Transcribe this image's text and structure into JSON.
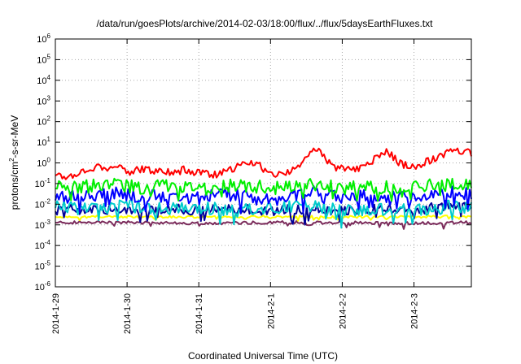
{
  "chart_data": {
    "type": "line",
    "title": "/data/run/goesPlots/archive/2014-02-03/18:00/flux/../flux/5daysEarthFluxes.txt",
    "xlabel": "Coordinated Universal Time (UTC)",
    "ylabel_main": "protons/cm",
    "ylabel_sup": "2",
    "ylabel_tail": "-s-sr-MeV",
    "x_tick_labels": [
      "2014-1-29",
      "2014-1-30",
      "2014-1-31",
      "2014-2-1",
      "2014-2-2",
      "2014-2-3"
    ],
    "x_range_days": [
      0,
      5.8
    ],
    "y_scale": "log",
    "y_tick_exponents": [
      -6,
      -5,
      -4,
      -3,
      -2,
      -1,
      0,
      1,
      2,
      3,
      4,
      5,
      6
    ],
    "y_tick_base": "10",
    "ylim": [
      1e-06,
      1000000.0
    ],
    "grid": true,
    "legend": "none",
    "series": [
      {
        "color": "#ff0000",
        "points": [
          [
            0,
            0.3
          ],
          [
            0.15,
            0.2
          ],
          [
            0.3,
            0.3
          ],
          [
            0.45,
            0.5
          ],
          [
            0.6,
            0.7
          ],
          [
            0.75,
            0.55
          ],
          [
            0.9,
            0.6
          ],
          [
            1.05,
            0.35
          ],
          [
            1.2,
            0.5
          ],
          [
            1.35,
            0.4
          ],
          [
            1.5,
            0.45
          ],
          [
            1.65,
            0.3
          ],
          [
            1.8,
            0.5
          ],
          [
            1.95,
            0.35
          ],
          [
            2.1,
            0.35
          ],
          [
            2.25,
            0.25
          ],
          [
            2.4,
            0.4
          ],
          [
            2.55,
            0.7
          ],
          [
            2.7,
            1.1
          ],
          [
            2.85,
            0.7
          ],
          [
            2.95,
            0.35
          ],
          [
            3.05,
            0.3
          ],
          [
            3.15,
            0.25
          ],
          [
            3.3,
            0.45
          ],
          [
            3.45,
            1.2
          ],
          [
            3.55,
            3.0
          ],
          [
            3.65,
            4.0
          ],
          [
            3.75,
            2.0
          ],
          [
            3.85,
            0.8
          ],
          [
            3.95,
            0.5
          ],
          [
            4.1,
            0.6
          ],
          [
            4.2,
            0.45
          ],
          [
            4.35,
            0.9
          ],
          [
            4.5,
            2.0
          ],
          [
            4.6,
            3.5
          ],
          [
            4.7,
            2.2
          ],
          [
            4.8,
            1.0
          ],
          [
            4.9,
            0.7
          ],
          [
            5.0,
            0.6
          ],
          [
            5.1,
            0.9
          ],
          [
            5.25,
            1.5
          ],
          [
            5.4,
            2.5
          ],
          [
            5.55,
            4.0
          ],
          [
            5.65,
            3.5
          ],
          [
            5.75,
            4.5
          ],
          [
            5.8,
            2.0
          ]
        ]
      },
      {
        "color": "#00ee00",
        "points": [
          [
            0,
            0.08
          ],
          [
            0.4,
            0.07
          ],
          [
            0.8,
            0.1
          ],
          [
            1.2,
            0.06
          ],
          [
            1.6,
            0.09
          ],
          [
            2.0,
            0.06
          ],
          [
            2.4,
            0.08
          ],
          [
            2.8,
            0.07
          ],
          [
            3.2,
            0.06
          ],
          [
            3.6,
            0.09
          ],
          [
            4.0,
            0.06
          ],
          [
            4.4,
            0.07
          ],
          [
            4.8,
            0.06
          ],
          [
            5.2,
            0.08
          ],
          [
            5.6,
            0.1
          ],
          [
            5.8,
            0.09
          ]
        ]
      },
      {
        "color": "#0000ff",
        "points": [
          [
            0,
            0.02
          ],
          [
            0.4,
            0.03
          ],
          [
            0.8,
            0.04
          ],
          [
            1.2,
            0.02
          ],
          [
            1.6,
            0.03
          ],
          [
            2.0,
            0.02
          ],
          [
            2.4,
            0.035
          ],
          [
            2.8,
            0.02
          ],
          [
            3.2,
            0.025
          ],
          [
            3.6,
            0.04
          ],
          [
            4.0,
            0.02
          ],
          [
            4.4,
            0.03
          ],
          [
            4.8,
            0.02
          ],
          [
            5.2,
            0.03
          ],
          [
            5.6,
            0.04
          ],
          [
            5.8,
            0.03
          ]
        ]
      },
      {
        "color": "#00cccc",
        "points": [
          [
            0,
            0.008
          ],
          [
            0.5,
            0.006
          ],
          [
            1.0,
            0.009
          ],
          [
            1.5,
            0.006
          ],
          [
            2.0,
            0.007
          ],
          [
            2.5,
            0.005
          ],
          [
            3.0,
            0.007
          ],
          [
            3.5,
            0.009
          ],
          [
            4.0,
            0.005
          ],
          [
            4.5,
            0.006
          ],
          [
            5.0,
            0.005
          ],
          [
            5.5,
            0.008
          ],
          [
            5.8,
            0.007
          ]
        ]
      },
      {
        "color": "#000099",
        "points": [
          [
            0,
            0.005
          ],
          [
            0.5,
            0.006
          ],
          [
            1.0,
            0.005
          ],
          [
            1.5,
            0.006
          ],
          [
            2.0,
            0.005
          ],
          [
            2.5,
            0.006
          ],
          [
            3.0,
            0.005
          ],
          [
            3.5,
            0.006
          ],
          [
            4.0,
            0.005
          ],
          [
            4.5,
            0.006
          ],
          [
            5.0,
            0.005
          ],
          [
            5.5,
            0.009
          ],
          [
            5.8,
            0.008
          ]
        ]
      },
      {
        "color": "#ffff00",
        "points": [
          [
            0,
            0.0025
          ],
          [
            1.0,
            0.0025
          ],
          [
            2.0,
            0.0024
          ],
          [
            3.0,
            0.0025
          ],
          [
            4.0,
            0.0024
          ],
          [
            5.0,
            0.0025
          ],
          [
            5.8,
            0.0025
          ]
        ]
      },
      {
        "color": "#7a2a5a",
        "points": [
          [
            0,
            0.0013
          ],
          [
            1.0,
            0.0013
          ],
          [
            2.0,
            0.0012
          ],
          [
            3.0,
            0.0013
          ],
          [
            4.0,
            0.0013
          ],
          [
            5.0,
            0.0012
          ],
          [
            5.8,
            0.0013
          ]
        ]
      }
    ]
  }
}
